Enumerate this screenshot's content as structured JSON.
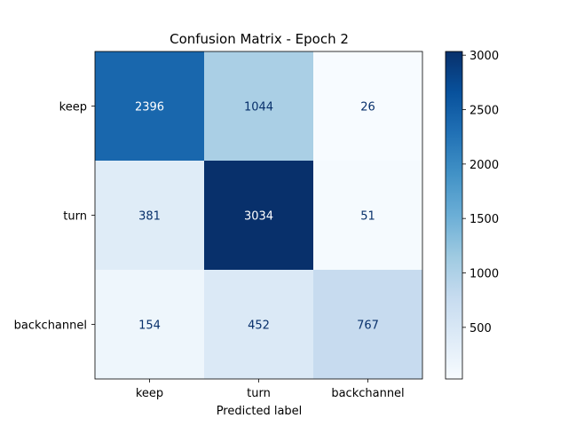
{
  "chart_data": {
    "type": "heatmap",
    "title": "Confusion Matrix - Epoch 2",
    "xlabel": "Predicted label",
    "ylabel": "",
    "x_categories": [
      "keep",
      "turn",
      "backchannel"
    ],
    "y_categories": [
      "keep",
      "turn",
      "backchannel"
    ],
    "values": [
      [
        2396,
        1044,
        26
      ],
      [
        381,
        3034,
        51
      ],
      [
        154,
        452,
        767
      ]
    ],
    "colormap": "Blues",
    "color_range": [
      26,
      3034
    ],
    "colorbar_ticks": [
      500,
      1000,
      1500,
      2000,
      2500,
      3000
    ]
  }
}
